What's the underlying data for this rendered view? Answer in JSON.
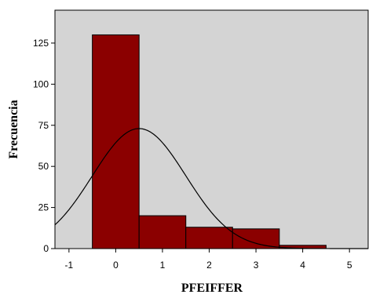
{
  "chart_data": {
    "type": "bar",
    "xlabel": "PFEIFFER",
    "ylabel": "Frecuencia",
    "xlim": [
      -1.3,
      5.4
    ],
    "ylim": [
      0,
      145
    ],
    "x_ticks": [
      -1,
      0,
      1,
      2,
      3,
      4,
      5
    ],
    "y_ticks": [
      0,
      25,
      50,
      75,
      100,
      125
    ],
    "bins": [
      {
        "x_start": -0.5,
        "x_end": 0.5,
        "value": 130
      },
      {
        "x_start": 0.5,
        "x_end": 1.5,
        "value": 20
      },
      {
        "x_start": 1.5,
        "x_end": 2.5,
        "value": 13
      },
      {
        "x_start": 2.5,
        "x_end": 3.5,
        "value": 12
      },
      {
        "x_start": 3.5,
        "x_end": 4.5,
        "value": 2
      }
    ],
    "normal_curve": {
      "mean": 0.5,
      "sd": 1.0,
      "peak": 73
    },
    "grid": false,
    "colors": {
      "bar": "#8b0000",
      "plot_background": "#d4d4d4",
      "curve": "#000000"
    }
  }
}
